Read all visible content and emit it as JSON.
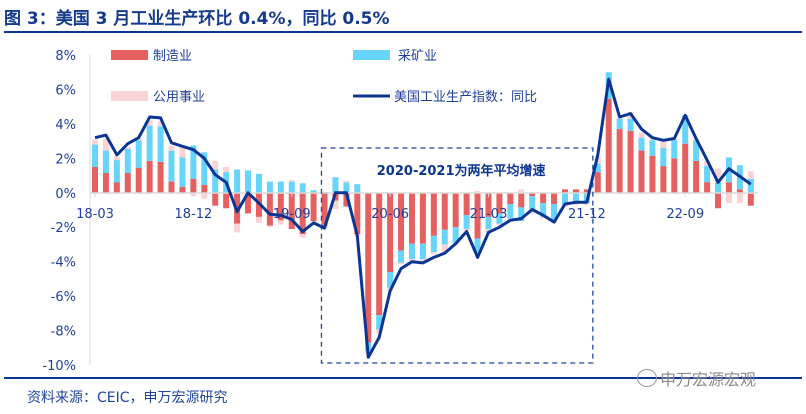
{
  "title": "图 3：美国 3 月工业生产环比 0.4%，同比 0.5%",
  "source": "资料来源：CEIC，申万宏源研究",
  "watermark": "申万宏源宏观",
  "colors": {
    "manufacturing": "#e6605f",
    "mining": "#66d4fb",
    "utilities": "#fad4d4",
    "line": "#0b3593",
    "text": "#1f3f9b"
  },
  "chart_data": {
    "type": "bar",
    "stacked": true,
    "title": "美国 3 月工业生产环比 0.4%，同比 0.5%",
    "xlabel": "",
    "ylabel": "",
    "ylim": [
      -10,
      8
    ],
    "yticks": [
      8,
      6,
      4,
      2,
      0,
      -2,
      -4,
      -6,
      -8,
      -10
    ],
    "ytick_labels": [
      "8%",
      "6%",
      "4%",
      "2%",
      "0%",
      "-2%",
      "-4%",
      "-6%",
      "-8%",
      "-10%"
    ],
    "xtick_labels": [
      "18-03",
      "18-12",
      "19-09",
      "20-06",
      "21-03",
      "21-12",
      "22-09"
    ],
    "xtick_index": [
      0,
      9,
      18,
      27,
      36,
      45,
      54
    ],
    "legend_position": "top",
    "annotation": "2020-2021为两年平均增速",
    "annotation_range": [
      "20-01",
      "21-12"
    ],
    "categories": [
      "18-03",
      "18-04",
      "18-05",
      "18-06",
      "18-07",
      "18-08",
      "18-09",
      "18-10",
      "18-11",
      "18-12",
      "19-01",
      "19-02",
      "19-03",
      "19-04",
      "19-05",
      "19-06",
      "19-07",
      "19-08",
      "19-09",
      "19-10",
      "19-11",
      "19-12",
      "20-01",
      "20-02",
      "20-03",
      "20-04",
      "20-05",
      "20-06",
      "20-07",
      "20-08",
      "20-09",
      "20-10",
      "20-11",
      "20-12",
      "21-01",
      "21-02",
      "21-03",
      "21-04",
      "21-05",
      "21-06",
      "21-07",
      "21-08",
      "21-09",
      "21-10",
      "21-11",
      "21-12",
      "22-01",
      "22-02",
      "22-03",
      "22-04",
      "22-05",
      "22-06",
      "22-07",
      "22-08",
      "22-09",
      "22-10",
      "22-11",
      "22-12",
      "23-01",
      "23-02",
      "23-03"
    ],
    "series": [
      {
        "name": "制造业",
        "type": "bar",
        "values": [
          1.5,
          1.15,
          0.6,
          1.15,
          1.45,
          1.85,
          1.8,
          0.65,
          0.35,
          0.8,
          0.45,
          -0.75,
          -0.9,
          -1.8,
          -1.2,
          -1.4,
          -1.9,
          -1.6,
          -2.1,
          -2.4,
          -1.65,
          -1.9,
          -0.45,
          -0.8,
          -2.4,
          -8.7,
          -7.1,
          -4.6,
          -3.35,
          -2.95,
          -2.95,
          -2.5,
          -2.15,
          -2.0,
          -1.3,
          -2.65,
          -1.4,
          -1.2,
          -0.65,
          -0.85,
          -0.2,
          -0.6,
          -0.65,
          0.2,
          0.2,
          0.2,
          1.2,
          5.45,
          3.7,
          3.6,
          2.45,
          2.15,
          1.55,
          2.0,
          2.85,
          1.85,
          0.62,
          -0.9,
          0.6,
          0.2,
          -0.75
        ]
      },
      {
        "name": "采矿业",
        "type": "bar",
        "values": [
          1.3,
          1.3,
          1.3,
          1.4,
          1.6,
          2.05,
          2.05,
          1.8,
          1.7,
          1.95,
          1.9,
          1.35,
          1.2,
          1.35,
          1.3,
          1.1,
          0.65,
          0.65,
          0.65,
          0.55,
          0.15,
          0.05,
          0.9,
          0.6,
          0.5,
          -0.5,
          -0.85,
          -0.9,
          -0.7,
          -0.9,
          -0.9,
          -0.95,
          -0.85,
          -0.9,
          -0.8,
          -0.8,
          -0.7,
          -0.6,
          -0.85,
          -0.8,
          -0.9,
          -0.8,
          -1.0,
          -0.7,
          -0.6,
          -0.6,
          0.5,
          1.55,
          0.6,
          0.7,
          0.75,
          0.9,
          1.05,
          1.05,
          1.65,
          1.2,
          0.93,
          0.6,
          1.45,
          1.4,
          0.8
        ]
      },
      {
        "name": "公用事业",
        "type": "bar",
        "values": [
          0.3,
          0.7,
          0.2,
          0.1,
          0.1,
          0.3,
          0.3,
          0.3,
          0.6,
          -0.2,
          -0.35,
          0.5,
          0.3,
          -0.5,
          0.0,
          -0.35,
          -0.1,
          -0.25,
          0.1,
          -0.2,
          -0.05,
          -0.1,
          -0.5,
          0.1,
          -0.15,
          -0.2,
          -0.2,
          -0.2,
          -0.1,
          -0.1,
          -0.1,
          -0.1,
          -0.45,
          -0.1,
          -0.1,
          0.1,
          -0.2,
          -0.1,
          -0.1,
          0.2,
          -0.1,
          -0.1,
          -0.1,
          -0.1,
          -0.1,
          -0.1,
          0.4,
          0.0,
          0.05,
          0.4,
          0.3,
          0.1,
          0.4,
          0.1,
          0.0,
          0.1,
          0.3,
          0.8,
          -0.6,
          -0.6,
          0.45
        ]
      },
      {
        "name": "美国工业生产指数：同比",
        "type": "line",
        "values": [
          3.2,
          3.35,
          2.2,
          2.85,
          3.2,
          4.4,
          4.35,
          2.9,
          2.7,
          2.5,
          2.0,
          1.05,
          0.6,
          -1.1,
          0.0,
          -0.6,
          -1.25,
          -1.3,
          -1.55,
          -2.25,
          -1.75,
          -2.05,
          0.0,
          0.0,
          -2.5,
          -9.55,
          -8.4,
          -5.7,
          -4.4,
          -4.0,
          -4.07,
          -3.75,
          -3.5,
          -2.95,
          -2.25,
          -3.75,
          -2.3,
          -2.0,
          -1.6,
          -1.5,
          -0.97,
          -1.3,
          -1.7,
          -0.65,
          -0.55,
          -0.55,
          2.2,
          6.6,
          4.4,
          4.6,
          3.7,
          3.2,
          3.05,
          3.15,
          4.5,
          3.15,
          1.9,
          0.6,
          1.4,
          0.95,
          0.5
        ]
      }
    ]
  }
}
